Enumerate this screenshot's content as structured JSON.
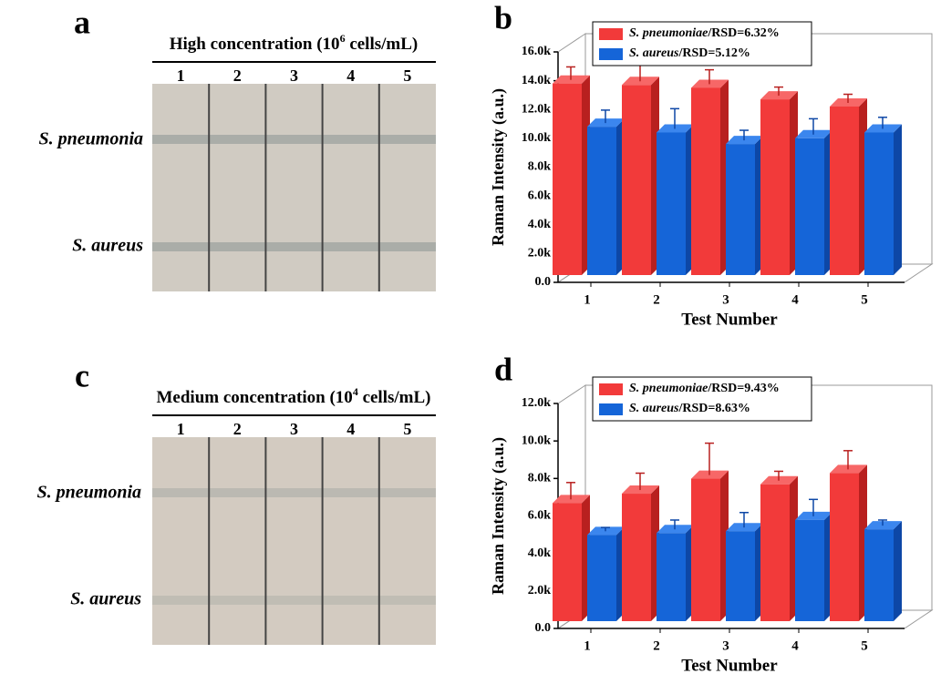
{
  "panels": [
    {
      "letter": "a",
      "title": [
        "High concentration (10",
        "6",
        " cells/mL)"
      ],
      "lanes": [
        "1",
        "2",
        "3",
        "4",
        "5"
      ],
      "rows": [
        "S. pneumonia",
        "S. aureus"
      ]
    },
    {
      "letter": "c",
      "title": [
        "Medium concentration (10",
        "4",
        " cells/mL)"
      ],
      "lanes": [
        "1",
        "2",
        "3",
        "4",
        "5"
      ],
      "rows": [
        "S. pneumonia",
        "S. aureus"
      ]
    }
  ],
  "chart_data": [
    {
      "type": "bar",
      "letter": "b",
      "xlabel": "Test Number",
      "ylabel": "Raman Intensity (a.u.)",
      "categories": [
        "1",
        "2",
        "3",
        "4",
        "5"
      ],
      "ylim": [
        0,
        16000
      ],
      "yticks": [
        {
          "value": 0,
          "label": "0.0"
        },
        {
          "value": 2000,
          "label": "2.0k"
        },
        {
          "value": 4000,
          "label": "4.0k"
        },
        {
          "value": 6000,
          "label": "6.0k"
        },
        {
          "value": 8000,
          "label": "8.0k"
        },
        {
          "value": 10000,
          "label": "10.0k"
        },
        {
          "value": 12000,
          "label": "12.0k"
        },
        {
          "value": 14000,
          "label": "14.0k"
        },
        {
          "value": 16000,
          "label": "16.0k"
        }
      ],
      "series": [
        {
          "name": "S. pneumoniae",
          "rsd_label": "/RSD=6.32%",
          "color": "#f23a3a",
          "values": [
            13300,
            13200,
            13000,
            12200,
            11700
          ],
          "errors": [
            900,
            1500,
            1000,
            600,
            600
          ]
        },
        {
          "name": "S. aureus",
          "rsd_label": "/RSD=5.12%",
          "color": "#1565d8",
          "values": [
            10300,
            9900,
            9100,
            9500,
            9900
          ],
          "errors": [
            900,
            1400,
            700,
            1100,
            800
          ]
        }
      ]
    },
    {
      "type": "bar",
      "letter": "d",
      "xlabel": "Test Number",
      "ylabel": "Raman Intensity (a.u.)",
      "categories": [
        "1",
        "2",
        "3",
        "4",
        "5"
      ],
      "ylim": [
        0,
        12000
      ],
      "yticks": [
        {
          "value": 0,
          "label": "0.0"
        },
        {
          "value": 2000,
          "label": "2.0k"
        },
        {
          "value": 4000,
          "label": "4.0k"
        },
        {
          "value": 6000,
          "label": "6.0k"
        },
        {
          "value": 8000,
          "label": "8.0k"
        },
        {
          "value": 10000,
          "label": "10.0k"
        },
        {
          "value": 12000,
          "label": "12.0k"
        }
      ],
      "series": [
        {
          "name": "S. pneumoniae",
          "rsd_label": "/RSD=9.43%",
          "color": "#f23a3a",
          "values": [
            6300,
            6800,
            7600,
            7300,
            7900
          ],
          "errors": [
            900,
            900,
            1700,
            500,
            1000
          ]
        },
        {
          "name": "S. aureus",
          "rsd_label": "/RSD=8.63%",
          "color": "#1565d8",
          "values": [
            4600,
            4700,
            4800,
            5400,
            4900
          ],
          "errors": [
            200,
            500,
            800,
            900,
            300
          ]
        }
      ]
    }
  ]
}
